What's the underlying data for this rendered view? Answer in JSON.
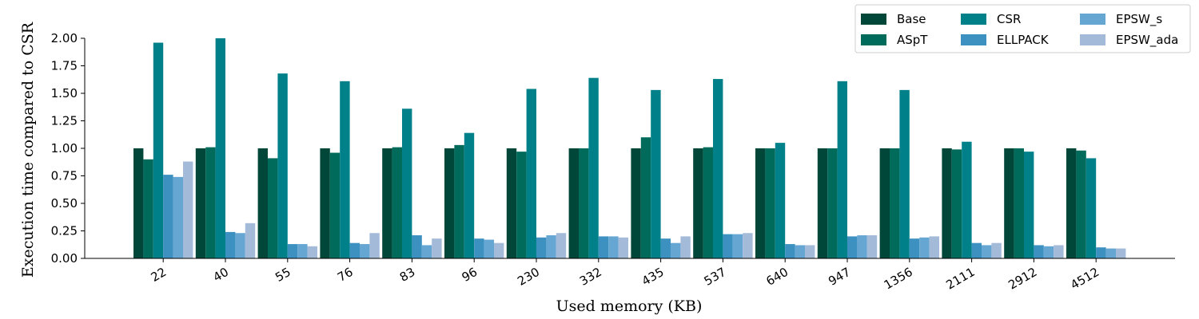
{
  "chart_data": {
    "type": "bar",
    "title": "",
    "xlabel": "Used memory (KB)",
    "ylabel": "Execution time compared to CSR",
    "ylim": [
      0,
      2.0
    ],
    "yticks": [
      "0.00",
      "0.25",
      "0.50",
      "0.75",
      "1.00",
      "1.25",
      "1.50",
      "1.75",
      "2.00"
    ],
    "categories": [
      "22",
      "40",
      "55",
      "76",
      "83",
      "96",
      "230",
      "332",
      "435",
      "537",
      "640",
      "947",
      "1356",
      "2111",
      "2912",
      "4512"
    ],
    "legend_position": "top-right",
    "grid": false,
    "series": [
      {
        "name": "Base",
        "color": "#00473a",
        "values": [
          1.0,
          1.0,
          1.0,
          1.0,
          1.0,
          1.0,
          1.0,
          1.0,
          1.0,
          1.0,
          1.0,
          1.0,
          1.0,
          1.0,
          1.0,
          1.0
        ]
      },
      {
        "name": "ASpT",
        "color": "#006b5b",
        "values": [
          0.9,
          1.01,
          0.91,
          0.96,
          1.01,
          1.03,
          0.97,
          1.0,
          1.1,
          1.01,
          1.0,
          1.0,
          1.0,
          0.99,
          1.0,
          0.98
        ]
      },
      {
        "name": "CSR",
        "color": "#00818a",
        "values": [
          1.96,
          2.0,
          1.68,
          1.61,
          1.36,
          1.14,
          1.54,
          1.64,
          1.53,
          1.63,
          1.05,
          1.61,
          1.53,
          1.06,
          0.97,
          0.91
        ]
      },
      {
        "name": "ELLPACK",
        "color": "#3c91c1",
        "values": [
          0.76,
          0.24,
          0.13,
          0.14,
          0.21,
          0.18,
          0.19,
          0.2,
          0.18,
          0.22,
          0.13,
          0.2,
          0.18,
          0.14,
          0.12,
          0.1
        ]
      },
      {
        "name": "EPSW_s",
        "color": "#65a6d2",
        "values": [
          0.74,
          0.23,
          0.13,
          0.13,
          0.12,
          0.17,
          0.21,
          0.2,
          0.14,
          0.22,
          0.12,
          0.21,
          0.19,
          0.12,
          0.11,
          0.09
        ]
      },
      {
        "name": "EPSW_ada",
        "color": "#a3bad9",
        "values": [
          0.88,
          0.32,
          0.11,
          0.23,
          0.18,
          0.14,
          0.23,
          0.19,
          0.2,
          0.23,
          0.12,
          0.21,
          0.2,
          0.14,
          0.12,
          0.09
        ]
      }
    ]
  }
}
